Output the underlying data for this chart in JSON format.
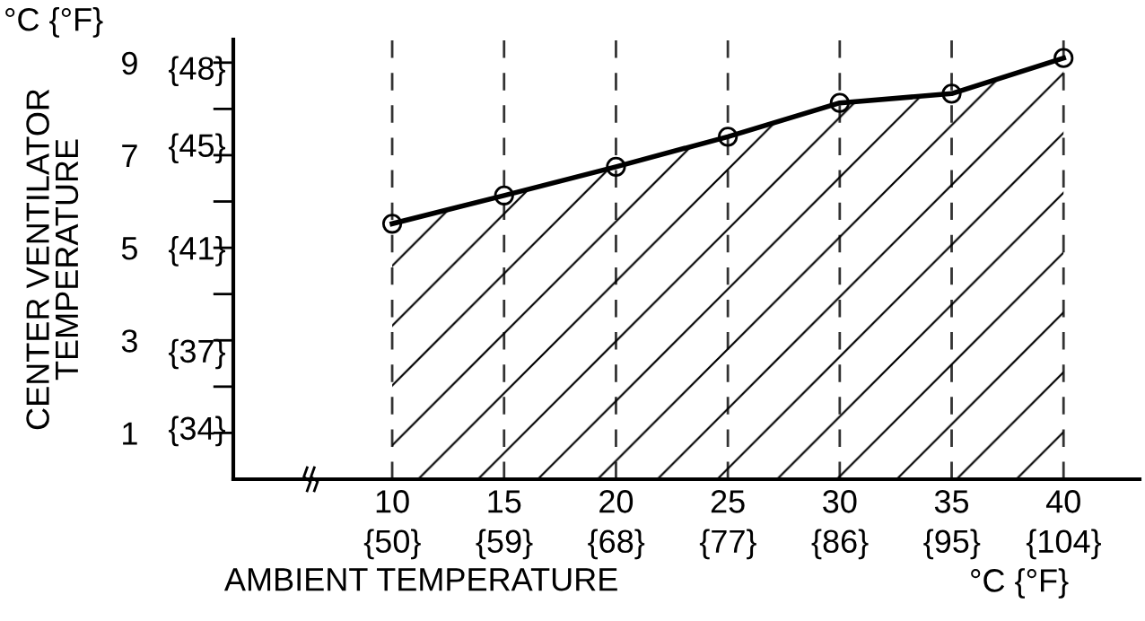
{
  "chart_data": {
    "type": "area",
    "xlabel": "AMBIENT TEMPERATURE",
    "ylabel": "CENTER VENTILATOR\nTEMPERATURE",
    "annotations": [
      "°C {°F}",
      "°C {°F}"
    ],
    "x": [
      10,
      15,
      20,
      25,
      30,
      35,
      40
    ],
    "series": [
      {
        "color": "#000000",
        "values": [
          5.52,
          6.13,
          6.75,
          7.4,
          8.13,
          8.33,
          9.1
        ]
      }
    ],
    "xlim": [
      2.9,
      43.4
    ],
    "ylim": [
      0,
      9.5
    ],
    "xticks": [
      10,
      15,
      20,
      25,
      30,
      35,
      40
    ],
    "yticks": [
      1,
      {
        "value": 2,
        "label": null
      },
      3,
      {
        "value": 4,
        "label": null
      },
      5,
      {
        "value": 6,
        "label": null
      },
      7,
      {
        "value": 8,
        "label": null
      },
      9
    ],
    "x2lim": [
      37.2,
      110.1
    ],
    "x2ticks": [
      {
        "value": 50,
        "label": "{50}"
      },
      {
        "value": 59,
        "label": "{59}"
      },
      {
        "value": 68,
        "label": "{68}"
      },
      {
        "value": 77,
        "label": "{77}"
      },
      {
        "value": 86,
        "label": "{86}"
      },
      {
        "value": 95,
        "label": "{95}"
      },
      {
        "value": 104,
        "label": "{104}"
      }
    ],
    "y2lim": [
      32,
      49.1
    ],
    "y2ticks": [
      {
        "value": 34,
        "label": "{34}"
      },
      {
        "value": 37,
        "label": "{37}"
      },
      {
        "value": 41,
        "label": "{41}"
      },
      {
        "value": 45,
        "label": "{45}"
      },
      {
        "value": 48,
        "label": "{48}"
      }
    ],
    "grid": "x",
    "marker": "circle",
    "line_style": "solid"
  }
}
